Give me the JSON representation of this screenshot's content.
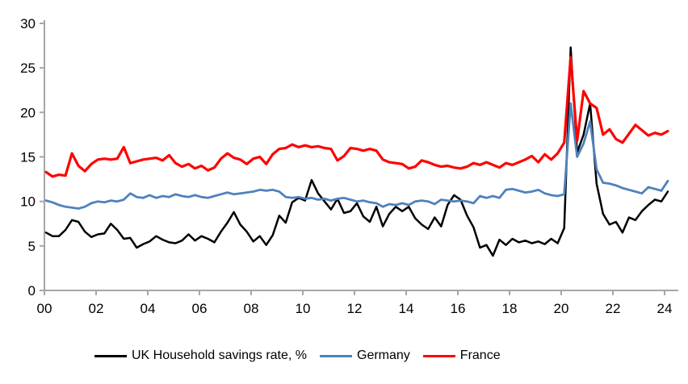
{
  "chart_data": {
    "type": "line",
    "title": "",
    "frequency": "quarterly",
    "x_start_year": 2000,
    "x_end_year": 2024,
    "x_axis": {
      "tick_labels": [
        "00",
        "02",
        "04",
        "06",
        "08",
        "10",
        "12",
        "14",
        "16",
        "18",
        "20",
        "22",
        "24"
      ]
    },
    "y_axis": {
      "ticks": [
        0,
        5,
        10,
        15,
        20,
        25,
        30
      ],
      "range": [
        0,
        30
      ]
    },
    "grid": false,
    "legend_position": "bottom",
    "axis_color": "#A6A6A6",
    "label_color": "#000000",
    "series": [
      {
        "name": "UK Household savings rate, %",
        "color": "#000000",
        "values": [
          6.5,
          6.1,
          6.1,
          6.8,
          7.9,
          7.7,
          6.6,
          6.0,
          6.3,
          6.4,
          7.5,
          6.8,
          5.8,
          5.9,
          4.8,
          5.2,
          5.5,
          6.1,
          5.7,
          5.4,
          5.3,
          5.6,
          6.3,
          5.6,
          6.1,
          5.8,
          5.4,
          6.6,
          7.6,
          8.8,
          7.4,
          6.6,
          5.5,
          6.1,
          5.1,
          6.2,
          8.4,
          7.6,
          9.9,
          10.4,
          10.1,
          12.4,
          10.9,
          10.0,
          9.1,
          10.3,
          8.7,
          8.9,
          9.8,
          8.3,
          7.7,
          9.4,
          7.2,
          8.6,
          9.4,
          8.9,
          9.4,
          8.1,
          7.4,
          6.9,
          8.2,
          7.2,
          9.6,
          10.7,
          10.2,
          8.4,
          7.1,
          4.8,
          5.1,
          3.9,
          5.7,
          5.1,
          5.8,
          5.4,
          5.6,
          5.3,
          5.5,
          5.2,
          5.8,
          5.3,
          7.0,
          27.3,
          15.5,
          17.5,
          21.0,
          12.0,
          8.6,
          7.4,
          7.7,
          6.5,
          8.2,
          7.9,
          8.9,
          9.6,
          10.2,
          10.0,
          11.1
        ]
      },
      {
        "name": "Germany",
        "color": "#4F81BD",
        "values": [
          10.1,
          9.9,
          9.6,
          9.4,
          9.3,
          9.2,
          9.4,
          9.8,
          10.0,
          9.9,
          10.1,
          10.0,
          10.2,
          10.9,
          10.5,
          10.4,
          10.7,
          10.4,
          10.6,
          10.5,
          10.8,
          10.6,
          10.5,
          10.7,
          10.5,
          10.4,
          10.6,
          10.8,
          11.0,
          10.8,
          10.9,
          11.0,
          11.1,
          11.3,
          11.2,
          11.3,
          11.1,
          10.5,
          10.4,
          10.5,
          10.3,
          10.4,
          10.2,
          10.3,
          10.1,
          10.3,
          10.4,
          10.2,
          10.0,
          10.1,
          9.9,
          9.8,
          9.4,
          9.7,
          9.6,
          9.8,
          9.6,
          10.0,
          10.1,
          10.0,
          9.7,
          10.2,
          10.1,
          10.0,
          10.1,
          10.0,
          9.8,
          10.6,
          10.4,
          10.6,
          10.4,
          11.3,
          11.4,
          11.2,
          11.0,
          11.1,
          11.3,
          10.9,
          10.7,
          10.6,
          10.8,
          21.0,
          15.0,
          16.5,
          19.0,
          13.6,
          12.1,
          12.0,
          11.8,
          11.5,
          11.3,
          11.1,
          10.9,
          11.6,
          11.4,
          11.2,
          12.3
        ]
      },
      {
        "name": "France",
        "color": "#FF0000",
        "values": [
          13.3,
          12.8,
          13.0,
          12.9,
          15.4,
          14.0,
          13.4,
          14.2,
          14.7,
          14.8,
          14.7,
          14.8,
          16.1,
          14.3,
          14.5,
          14.7,
          14.8,
          14.9,
          14.6,
          15.2,
          14.3,
          13.9,
          14.2,
          13.7,
          14.0,
          13.5,
          13.8,
          14.8,
          15.4,
          14.9,
          14.7,
          14.2,
          14.8,
          15.0,
          14.2,
          15.3,
          15.9,
          16.0,
          16.4,
          16.1,
          16.3,
          16.1,
          16.2,
          16.0,
          15.9,
          14.6,
          15.1,
          16.0,
          15.9,
          15.7,
          15.9,
          15.7,
          14.7,
          14.4,
          14.3,
          14.2,
          13.7,
          13.9,
          14.6,
          14.4,
          14.1,
          13.9,
          14.0,
          13.8,
          13.7,
          13.9,
          14.3,
          14.1,
          14.4,
          14.1,
          13.8,
          14.3,
          14.1,
          14.4,
          14.7,
          15.1,
          14.4,
          15.3,
          14.7,
          15.4,
          16.6,
          26.2,
          16.8,
          22.4,
          21.0,
          20.5,
          17.5,
          18.1,
          17.0,
          16.6,
          17.6,
          18.6,
          18.0,
          17.4,
          17.7,
          17.5,
          17.9
        ]
      }
    ]
  }
}
